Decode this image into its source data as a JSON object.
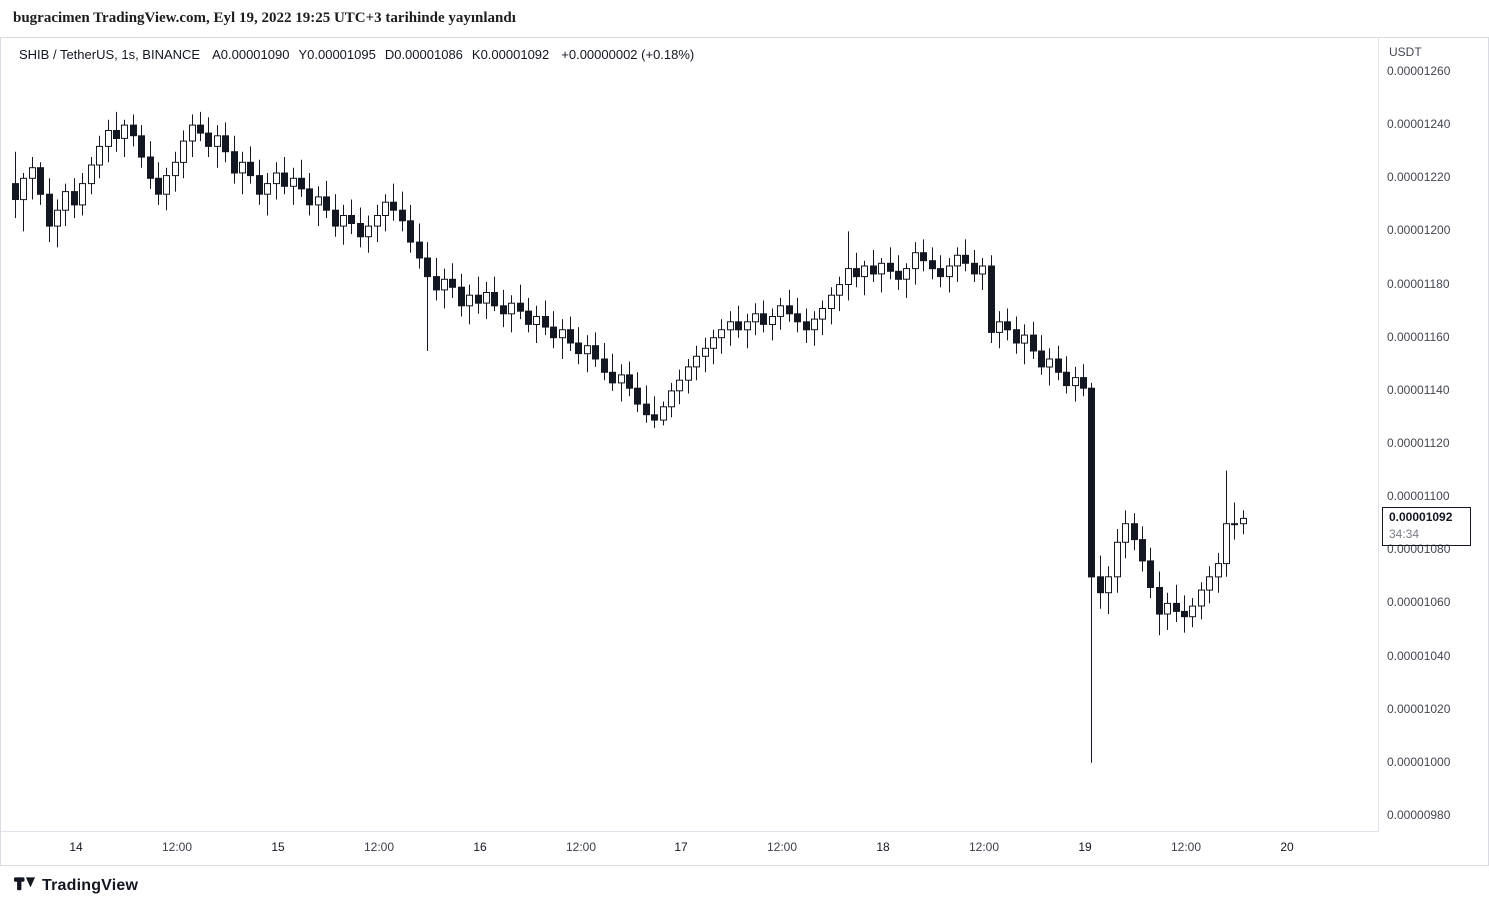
{
  "header": {
    "published_line": "bugracimen TradingView.com, Eyl 19, 2022 19:25 UTC+3 tarihinde yayınlandı"
  },
  "legend": {
    "symbol_line": "SHIB / TetherUS, 1s, BINANCE",
    "fields": [
      {
        "label": "A",
        "value": "0.00001090"
      },
      {
        "label": "Y",
        "value": "0.00001095"
      },
      {
        "label": "D",
        "value": "0.00001086"
      },
      {
        "label": "K",
        "value": "0.00001092"
      }
    ],
    "change": "+0.00000002 (+0.18%)"
  },
  "footer": {
    "brand": "TradingView"
  },
  "colors": {
    "candle_up_fill": "#ffffff",
    "candle_down_fill": "#131722",
    "candle_outline": "#131722",
    "axis_text": "#434651",
    "separator": "#e0e3eb"
  },
  "chart_data": {
    "type": "candlestick",
    "title": "SHIB / TetherUS, 1s, BINANCE",
    "symbol": "SHIB / TetherUS",
    "interval": "1s",
    "exchange": "BINANCE",
    "price_unit": 1e-08,
    "ylim": [
      9.8e-06,
      1.26e-05
    ],
    "y_axis": {
      "currency_label": "USDT",
      "ticks": [
        {
          "label": "0.00001260",
          "value": 1260
        },
        {
          "label": "0.00001240",
          "value": 1240
        },
        {
          "label": "0.00001220",
          "value": 1220
        },
        {
          "label": "0.00001200",
          "value": 1200
        },
        {
          "label": "0.00001180",
          "value": 1180
        },
        {
          "label": "0.00001160",
          "value": 1160
        },
        {
          "label": "0.00001140",
          "value": 1140
        },
        {
          "label": "0.00001120",
          "value": 1120
        },
        {
          "label": "0.00001100",
          "value": 1100
        },
        {
          "label": "0.00001080",
          "value": 1080
        },
        {
          "label": "0.00001060",
          "value": 1060
        },
        {
          "label": "0.00001040",
          "value": 1040
        },
        {
          "label": "0.00001020",
          "value": 1020
        },
        {
          "label": "0.00001000",
          "value": 1000
        },
        {
          "label": "0.00000980",
          "value": 980
        }
      ]
    },
    "x_axis": {
      "ticks": [
        {
          "label": "14",
          "pos": 7.25,
          "kind": "day"
        },
        {
          "label": "12:00",
          "pos": 19.25,
          "kind": "hour"
        },
        {
          "label": "15",
          "pos": 31.25,
          "kind": "day"
        },
        {
          "label": "12:00",
          "pos": 43.25,
          "kind": "hour"
        },
        {
          "label": "16",
          "pos": 55.25,
          "kind": "day"
        },
        {
          "label": "12:00",
          "pos": 67.25,
          "kind": "hour"
        },
        {
          "label": "17",
          "pos": 79.25,
          "kind": "day"
        },
        {
          "label": "12:00",
          "pos": 91.25,
          "kind": "hour"
        },
        {
          "label": "18",
          "pos": 103.25,
          "kind": "day"
        },
        {
          "label": "12:00",
          "pos": 115.25,
          "kind": "hour"
        },
        {
          "label": "19",
          "pos": 127.25,
          "kind": "day"
        },
        {
          "label": "12:00",
          "pos": 139.25,
          "kind": "hour"
        },
        {
          "label": "20",
          "pos": 151.25,
          "kind": "day"
        }
      ]
    },
    "last_price": {
      "label": "0.00001092",
      "value": 1092,
      "countdown": "34:34"
    },
    "candles": [
      [
        1218,
        1230,
        1205,
        1212
      ],
      [
        1212,
        1222,
        1200,
        1220
      ],
      [
        1220,
        1228,
        1212,
        1224
      ],
      [
        1224,
        1226,
        1210,
        1214
      ],
      [
        1214,
        1220,
        1196,
        1202
      ],
      [
        1202,
        1212,
        1194,
        1208
      ],
      [
        1208,
        1218,
        1202,
        1215
      ],
      [
        1215,
        1220,
        1205,
        1210
      ],
      [
        1210,
        1222,
        1206,
        1218
      ],
      [
        1218,
        1228,
        1214,
        1225
      ],
      [
        1225,
        1236,
        1220,
        1232
      ],
      [
        1232,
        1242,
        1226,
        1238
      ],
      [
        1238,
        1245,
        1230,
        1235
      ],
      [
        1235,
        1242,
        1228,
        1240
      ],
      [
        1240,
        1244,
        1232,
        1236
      ],
      [
        1236,
        1240,
        1224,
        1228
      ],
      [
        1228,
        1234,
        1216,
        1220
      ],
      [
        1220,
        1226,
        1210,
        1214
      ],
      [
        1214,
        1224,
        1208,
        1221
      ],
      [
        1221,
        1230,
        1215,
        1226
      ],
      [
        1226,
        1238,
        1220,
        1234
      ],
      [
        1234,
        1244,
        1228,
        1240
      ],
      [
        1240,
        1245,
        1234,
        1237
      ],
      [
        1237,
        1243,
        1228,
        1232
      ],
      [
        1232,
        1240,
        1224,
        1236
      ],
      [
        1236,
        1241,
        1226,
        1230
      ],
      [
        1230,
        1236,
        1218,
        1222
      ],
      [
        1222,
        1230,
        1214,
        1226
      ],
      [
        1226,
        1232,
        1218,
        1221
      ],
      [
        1221,
        1227,
        1210,
        1214
      ],
      [
        1214,
        1222,
        1206,
        1218
      ],
      [
        1218,
        1226,
        1212,
        1222
      ],
      [
        1222,
        1228,
        1214,
        1217
      ],
      [
        1217,
        1224,
        1210,
        1220
      ],
      [
        1220,
        1227,
        1213,
        1216
      ],
      [
        1216,
        1222,
        1206,
        1210
      ],
      [
        1210,
        1217,
        1202,
        1213
      ],
      [
        1213,
        1219,
        1205,
        1208
      ],
      [
        1208,
        1214,
        1198,
        1202
      ],
      [
        1202,
        1210,
        1195,
        1206
      ],
      [
        1206,
        1212,
        1199,
        1203
      ],
      [
        1203,
        1209,
        1194,
        1198
      ],
      [
        1198,
        1206,
        1192,
        1202
      ],
      [
        1202,
        1210,
        1196,
        1206
      ],
      [
        1206,
        1214,
        1200,
        1211
      ],
      [
        1211,
        1218,
        1204,
        1208
      ],
      [
        1208,
        1215,
        1200,
        1204
      ],
      [
        1204,
        1210,
        1192,
        1196
      ],
      [
        1196,
        1203,
        1186,
        1190
      ],
      [
        1190,
        1196,
        1155,
        1183
      ],
      [
        1183,
        1190,
        1174,
        1178
      ],
      [
        1178,
        1186,
        1171,
        1182
      ],
      [
        1182,
        1188,
        1175,
        1179
      ],
      [
        1179,
        1184,
        1168,
        1172
      ],
      [
        1172,
        1180,
        1165,
        1176
      ],
      [
        1176,
        1183,
        1169,
        1173
      ],
      [
        1173,
        1181,
        1167,
        1177
      ],
      [
        1177,
        1183,
        1170,
        1172
      ],
      [
        1172,
        1178,
        1164,
        1169
      ],
      [
        1169,
        1176,
        1162,
        1173
      ],
      [
        1173,
        1180,
        1167,
        1170
      ],
      [
        1170,
        1175,
        1162,
        1165
      ],
      [
        1165,
        1172,
        1158,
        1168
      ],
      [
        1168,
        1174,
        1161,
        1164
      ],
      [
        1164,
        1170,
        1156,
        1160
      ],
      [
        1160,
        1167,
        1152,
        1163
      ],
      [
        1163,
        1168,
        1155,
        1158
      ],
      [
        1158,
        1164,
        1150,
        1154
      ],
      [
        1154,
        1161,
        1147,
        1157
      ],
      [
        1157,
        1162,
        1149,
        1152
      ],
      [
        1152,
        1158,
        1144,
        1147
      ],
      [
        1147,
        1154,
        1140,
        1143
      ],
      [
        1143,
        1150,
        1136,
        1146
      ],
      [
        1146,
        1151,
        1138,
        1141
      ],
      [
        1141,
        1147,
        1132,
        1135
      ],
      [
        1135,
        1142,
        1128,
        1131
      ],
      [
        1131,
        1138,
        1126,
        1129
      ],
      [
        1129,
        1136,
        1127,
        1134
      ],
      [
        1134,
        1143,
        1130,
        1140
      ],
      [
        1140,
        1148,
        1135,
        1144
      ],
      [
        1144,
        1152,
        1139,
        1149
      ],
      [
        1149,
        1157,
        1144,
        1153
      ],
      [
        1153,
        1160,
        1147,
        1156
      ],
      [
        1156,
        1163,
        1150,
        1160
      ],
      [
        1160,
        1167,
        1154,
        1163
      ],
      [
        1163,
        1170,
        1157,
        1166
      ],
      [
        1166,
        1172,
        1160,
        1163
      ],
      [
        1163,
        1169,
        1156,
        1166
      ],
      [
        1166,
        1173,
        1161,
        1169
      ],
      [
        1169,
        1174,
        1162,
        1165
      ],
      [
        1165,
        1171,
        1159,
        1168
      ],
      [
        1168,
        1175,
        1163,
        1172
      ],
      [
        1172,
        1178,
        1166,
        1169
      ],
      [
        1169,
        1175,
        1162,
        1166
      ],
      [
        1166,
        1171,
        1158,
        1163
      ],
      [
        1163,
        1170,
        1157,
        1167
      ],
      [
        1167,
        1174,
        1161,
        1171
      ],
      [
        1171,
        1179,
        1165,
        1176
      ],
      [
        1176,
        1183,
        1170,
        1180
      ],
      [
        1180,
        1200,
        1174,
        1186
      ],
      [
        1186,
        1192,
        1179,
        1183
      ],
      [
        1183,
        1189,
        1176,
        1187
      ],
      [
        1187,
        1193,
        1181,
        1184
      ],
      [
        1184,
        1190,
        1177,
        1188
      ],
      [
        1188,
        1194,
        1182,
        1185
      ],
      [
        1185,
        1191,
        1178,
        1182
      ],
      [
        1182,
        1188,
        1175,
        1186
      ],
      [
        1186,
        1196,
        1180,
        1192
      ],
      [
        1192,
        1197,
        1185,
        1189
      ],
      [
        1189,
        1194,
        1182,
        1186
      ],
      [
        1186,
        1191,
        1179,
        1183
      ],
      [
        1183,
        1190,
        1177,
        1187
      ],
      [
        1187,
        1194,
        1181,
        1191
      ],
      [
        1191,
        1197,
        1185,
        1188
      ],
      [
        1188,
        1193,
        1181,
        1184
      ],
      [
        1184,
        1190,
        1178,
        1187
      ],
      [
        1187,
        1191,
        1158,
        1162
      ],
      [
        1162,
        1170,
        1156,
        1166
      ],
      [
        1166,
        1171,
        1159,
        1163
      ],
      [
        1163,
        1168,
        1154,
        1158
      ],
      [
        1158,
        1165,
        1150,
        1161
      ],
      [
        1161,
        1166,
        1152,
        1155
      ],
      [
        1155,
        1161,
        1146,
        1149
      ],
      [
        1149,
        1156,
        1142,
        1152
      ],
      [
        1152,
        1157,
        1144,
        1147
      ],
      [
        1147,
        1153,
        1139,
        1142
      ],
      [
        1142,
        1149,
        1136,
        1145
      ],
      [
        1145,
        1150,
        1138,
        1141
      ],
      [
        1141,
        1143,
        1000,
        1070
      ],
      [
        1070,
        1078,
        1058,
        1064
      ],
      [
        1064,
        1074,
        1056,
        1070
      ],
      [
        1070,
        1088,
        1064,
        1083
      ],
      [
        1083,
        1095,
        1077,
        1090
      ],
      [
        1090,
        1094,
        1080,
        1084
      ],
      [
        1084,
        1089,
        1072,
        1076
      ],
      [
        1076,
        1081,
        1062,
        1066
      ],
      [
        1066,
        1072,
        1048,
        1056
      ],
      [
        1056,
        1064,
        1050,
        1060
      ],
      [
        1060,
        1067,
        1053,
        1057
      ],
      [
        1057,
        1063,
        1049,
        1055
      ],
      [
        1055,
        1062,
        1051,
        1059
      ],
      [
        1059,
        1068,
        1054,
        1065
      ],
      [
        1065,
        1074,
        1060,
        1070
      ],
      [
        1070,
        1079,
        1064,
        1075
      ],
      [
        1075,
        1110,
        1070,
        1090
      ],
      [
        1090,
        1098,
        1084,
        1090
      ],
      [
        1090,
        1095,
        1086,
        1092
      ]
    ]
  }
}
